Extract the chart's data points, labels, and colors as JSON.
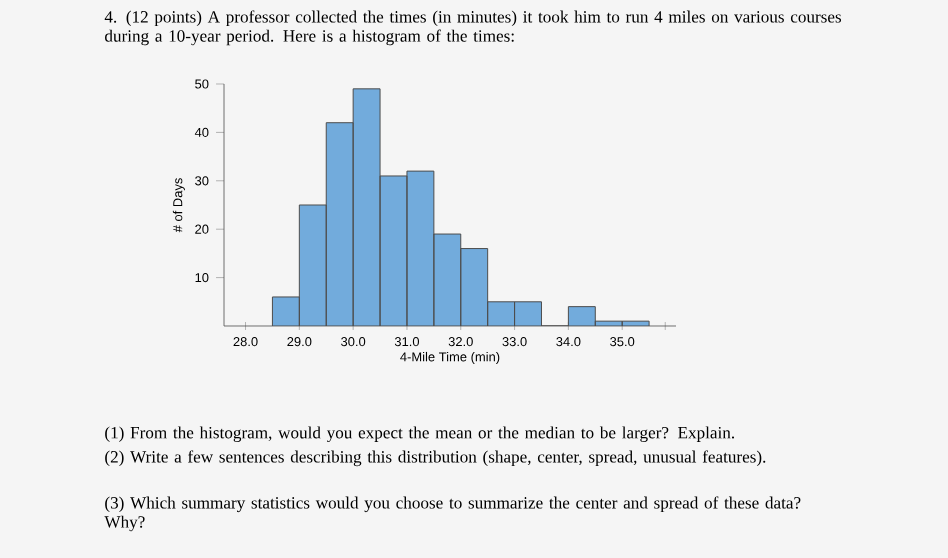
{
  "chart_data": {
    "type": "histogram",
    "title": "4. (12 points) A professor collected the times (in minutes) it took him to run 4 miles on various courses during a 10-year period. Here is a histogram of the times:",
    "xlabel": "4-Mile Time (min)",
    "ylabel": "# of Days",
    "bins": [
      28.5,
      29.0,
      29.5,
      30.0,
      30.5,
      31.0,
      31.5,
      32.0,
      32.5,
      33.0,
      33.5,
      34.0,
      34.5,
      35.0,
      35.5
    ],
    "values": [
      6,
      25,
      42,
      49,
      31,
      32,
      19,
      16,
      5,
      5,
      0,
      4,
      1,
      1
    ],
    "color": "#72abdc",
    "xlim": [
      27.6,
      36.0
    ],
    "ylim": [
      0,
      50
    ],
    "xticks": [
      {
        "value": 28.0,
        "label": "28.0"
      },
      {
        "value": 29.0,
        "label": "29.0"
      },
      {
        "value": 30.0,
        "label": "30.0"
      },
      {
        "value": 31.0,
        "label": "31.0"
      },
      {
        "value": 32.0,
        "label": "32.0"
      },
      {
        "value": 33.0,
        "label": "33.0"
      },
      {
        "value": 34.0,
        "label": "34.0"
      },
      {
        "value": 35.0,
        "label": "35.0"
      },
      {
        "value": 35.8,
        "label": null
      }
    ],
    "yticks": [
      10,
      20,
      30,
      40,
      50
    ],
    "annotations": [
      "(1) From the histogram, would you expect the mean or the median to be larger? Explain.",
      "(2) Write a few sentences describing this distribution (shape, center, spread, unusual features).",
      "(3) Which summary statistics would you choose to summarize the center and spread of these data? Why?"
    ]
  }
}
